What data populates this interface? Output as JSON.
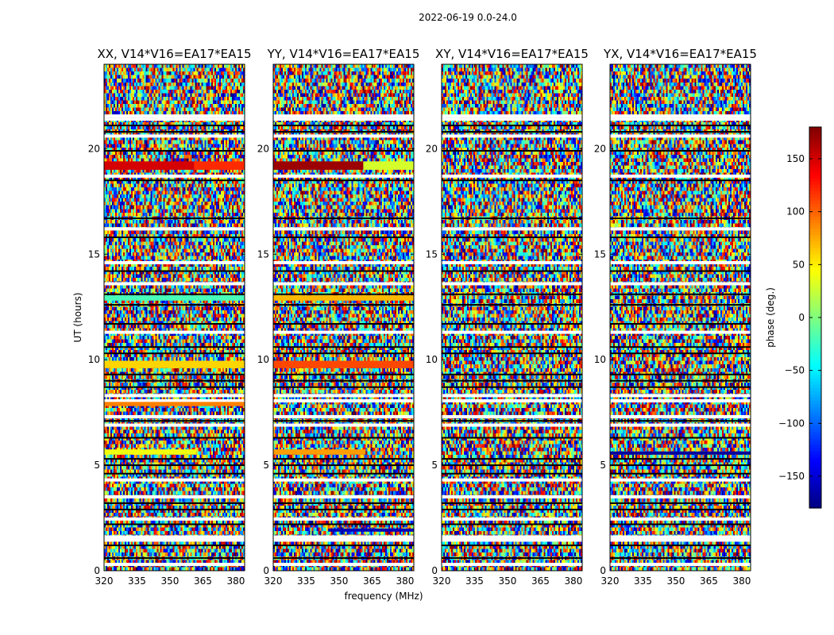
{
  "suptitle": "2022-06-19 0.0-24.0",
  "chart_data": {
    "type": "heatmap",
    "xlabel": "frequency (MHz)",
    "ylabel": "UT (hours)",
    "x_ticks": [
      "320",
      "335",
      "350",
      "365",
      "380"
    ],
    "x_tick_values": [
      320,
      335,
      350,
      365,
      380
    ],
    "xlim": [
      320,
      384
    ],
    "y_ticks": [
      "0",
      "5",
      "10",
      "15",
      "20"
    ],
    "y_tick_values": [
      0,
      5,
      10,
      15,
      20
    ],
    "ylim": [
      0,
      24
    ],
    "panels": [
      {
        "title": "XX, V14*V16=EA17*EA15",
        "coherent_bands": [
          {
            "t0": 19.0,
            "t1": 19.4,
            "f0": 320,
            "f1": 361,
            "phase": 150
          },
          {
            "t0": 19.0,
            "t1": 19.4,
            "f0": 361,
            "f1": 384,
            "phase": 120
          },
          {
            "t0": 9.6,
            "t1": 9.95,
            "f0": 320,
            "f1": 384,
            "phase": 60
          },
          {
            "t0": 12.8,
            "t1": 13.05,
            "f0": 320,
            "f1": 384,
            "phase": -20
          },
          {
            "t0": 5.5,
            "t1": 5.75,
            "f0": 320,
            "f1": 362,
            "phase": 40
          },
          {
            "t0": 7.8,
            "t1": 8.0,
            "f0": 320,
            "f1": 384,
            "phase": 90
          }
        ]
      },
      {
        "title": "YY, V14*V16=EA17*EA15",
        "coherent_bands": [
          {
            "t0": 19.0,
            "t1": 19.4,
            "f0": 320,
            "f1": 361,
            "phase": 170
          },
          {
            "t0": 19.0,
            "t1": 19.4,
            "f0": 361,
            "f1": 384,
            "phase": 30
          },
          {
            "t0": 9.6,
            "t1": 9.95,
            "f0": 320,
            "f1": 384,
            "phase": 110
          },
          {
            "t0": 12.8,
            "t1": 13.05,
            "f0": 320,
            "f1": 384,
            "phase": 70
          },
          {
            "t0": 5.5,
            "t1": 5.75,
            "f0": 320,
            "f1": 362,
            "phase": 80
          },
          {
            "t0": 1.85,
            "t1": 2.0,
            "f0": 345,
            "f1": 384,
            "phase": -160
          }
        ]
      },
      {
        "title": "XY, V14*V16=EA17*EA15",
        "coherent_bands": []
      },
      {
        "title": "YX, V14*V16=EA17*EA15",
        "coherent_bands": [
          {
            "t0": 5.5,
            "t1": 5.65,
            "f0": 320,
            "f1": 384,
            "phase": -170
          }
        ]
      }
    ],
    "blank_rows_hours": [
      21.4,
      21.55,
      20.6,
      18.7,
      16.2,
      14.6,
      13.6,
      11.3,
      8.3,
      8.05,
      7.3,
      6.9,
      4.3,
      3.5,
      2.45,
      1.6,
      1.45,
      0.3
    ],
    "black_rows_hours": [
      21.1,
      20.8,
      19.9,
      18.5,
      16.7,
      15.8,
      14.2,
      13.1,
      12.6,
      11.7,
      10.6,
      10.3,
      9.3,
      9.0,
      8.7,
      7.1,
      6.3,
      5.3,
      5.0,
      4.6,
      3.2,
      2.9,
      2.2,
      1.2,
      0.6
    ],
    "colorbar": {
      "label": "phase (deg.)",
      "ticks": [
        "150",
        "100",
        "50",
        "0",
        "−50",
        "−100",
        "−150"
      ],
      "tick_values": [
        150,
        100,
        50,
        0,
        -50,
        -100,
        -150
      ],
      "range": [
        -180,
        180
      ],
      "colormap": "jet"
    }
  }
}
